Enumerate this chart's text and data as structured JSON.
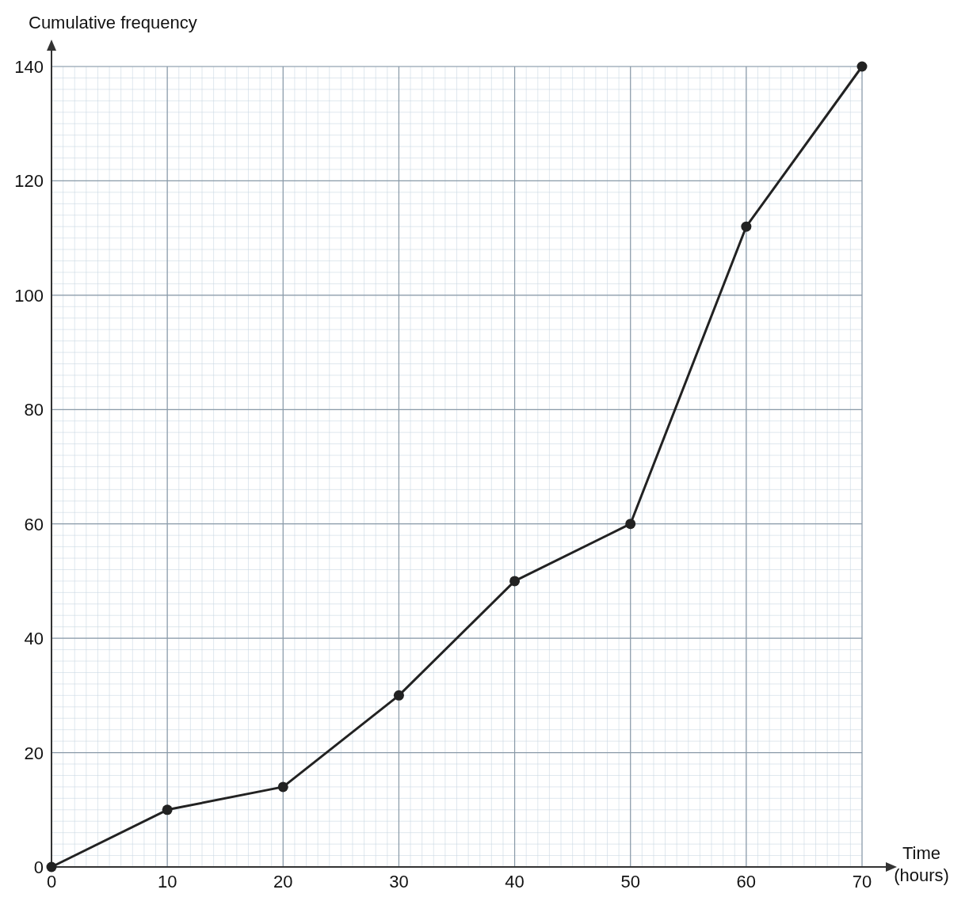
{
  "chart_data": {
    "type": "line",
    "xlabel": "Time (hours)",
    "ylabel": "Cumulative frequency",
    "x": [
      0,
      10,
      20,
      30,
      40,
      50,
      60,
      70
    ],
    "series": [
      {
        "color": "#222222",
        "values": [
          0,
          10,
          14,
          30,
          50,
          60,
          112,
          140
        ]
      }
    ],
    "xlim": [
      0,
      70
    ],
    "ylim": [
      0,
      140
    ],
    "xticks": [
      0,
      10,
      20,
      30,
      40,
      50,
      60,
      70
    ],
    "yticks": [
      0,
      20,
      40,
      60,
      80,
      100,
      120,
      140
    ],
    "grid": true,
    "marker": "circle",
    "line_style": "solid"
  }
}
